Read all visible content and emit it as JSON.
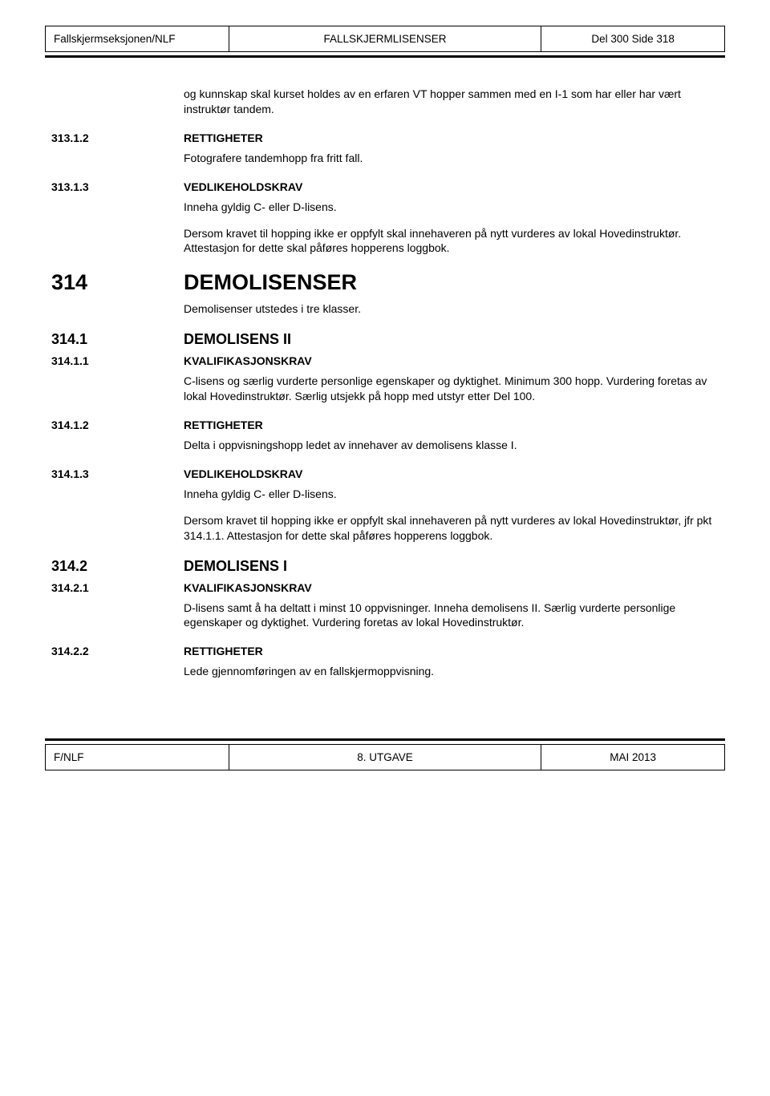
{
  "header": {
    "left": "Fallskjermseksjonen/NLF",
    "center": "FALLSKJERMLISENSER",
    "right": "Del 300 Side 318"
  },
  "footer": {
    "left": "F/NLF",
    "center": "8. UTGAVE",
    "right": "MAI 2013"
  },
  "body": {
    "intro": "og kunnskap skal kurset holdes av en erfaren VT hopper sammen med en I-1 som har eller har vært instruktør tandem.",
    "s313_1_2": {
      "num": "313.1.2",
      "title": "RETTIGHETER",
      "p1": "Fotografere tandemhopp fra fritt fall."
    },
    "s313_1_3": {
      "num": "313.1.3",
      "title": "VEDLIKEHOLDSKRAV",
      "p1": "Inneha gyldig C- eller D-lisens.",
      "p2": "Dersom kravet til hopping ikke er oppfylt skal innehaveren på nytt vurderes av lokal Hovedinstruktør. Attestasjon for dette skal påføres hopperens loggbok."
    },
    "s314": {
      "num": "314",
      "title": "DEMOLISENSER",
      "p1": "Demolisenser utstedes i tre klasser."
    },
    "s314_1": {
      "num": "314.1",
      "title": "DEMOLISENS II"
    },
    "s314_1_1": {
      "num": "314.1.1",
      "title": "KVALIFIKASJONSKRAV",
      "p1": "C-lisens og særlig vurderte personlige egenskaper og dyktighet. Minimum 300 hopp. Vurdering foretas av lokal Hovedinstruktør. Særlig utsjekk på hopp med utstyr etter Del 100."
    },
    "s314_1_2": {
      "num": "314.1.2",
      "title": "RETTIGHETER",
      "p1": "Delta i oppvisningshopp ledet av innehaver av demolisens klasse I."
    },
    "s314_1_3": {
      "num": "314.1.3",
      "title": "VEDLIKEHOLDSKRAV",
      "p1": "Inneha gyldig C- eller D-lisens.",
      "p2": "Dersom kravet til hopping ikke er oppfylt skal innehaveren på nytt vurderes av lokal Hovedinstruktør, jfr pkt 314.1.1. Attestasjon for dette skal påføres hopperens loggbok."
    },
    "s314_2": {
      "num": "314.2",
      "title": "DEMOLISENS I"
    },
    "s314_2_1": {
      "num": "314.2.1",
      "title": "KVALIFIKASJONSKRAV",
      "p1": "D-lisens samt å ha deltatt i minst 10 oppvisninger. Inneha demolisens II. Særlig vurderte personlige egenskaper og dyktighet. Vurdering foretas av lokal Hovedinstruktør."
    },
    "s314_2_2": {
      "num": "314.2.2",
      "title": "RETTIGHETER",
      "p1": "Lede gjennomføringen av en fallskjermoppvisning."
    }
  }
}
